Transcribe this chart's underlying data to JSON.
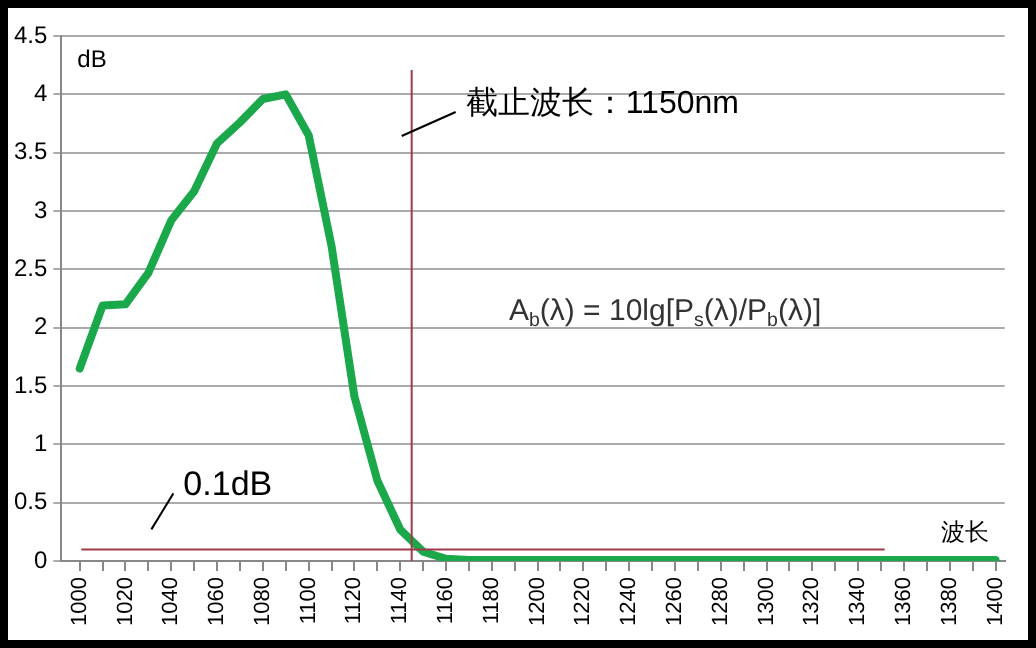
{
  "chart_data": {
    "type": "line",
    "xlabel": "波长",
    "ylabel": "dB",
    "x": [
      1000,
      1010,
      1020,
      1030,
      1040,
      1050,
      1060,
      1070,
      1080,
      1090,
      1100,
      1110,
      1120,
      1130,
      1140,
      1150,
      1160,
      1170,
      1180,
      1190,
      1200,
      1210,
      1220,
      1230,
      1240,
      1250,
      1260,
      1270,
      1280,
      1290,
      1300,
      1310,
      1320,
      1330,
      1340,
      1350,
      1360,
      1370,
      1380,
      1390,
      1400
    ],
    "series": [
      {
        "color": "#1aa84a",
        "values": [
          1.65,
          2.19,
          2.2,
          2.47,
          2.92,
          3.17,
          3.58,
          3.76,
          3.96,
          4.0,
          3.65,
          2.7,
          1.41,
          0.69,
          0.27,
          0.08,
          0.02,
          0.01,
          0.01,
          0.01,
          0.01,
          0.01,
          0.01,
          0.01,
          0.01,
          0.01,
          0.01,
          0.01,
          0.01,
          0.01,
          0.01,
          0.01,
          0.01,
          0.01,
          0.01,
          0.01,
          0.01,
          0.01,
          0.01,
          0.01,
          0.01
        ]
      }
    ],
    "xlim": [
      992,
      1404
    ],
    "xticks": [
      1000,
      {
        "value": 1010,
        "label": null
      },
      1020,
      {
        "value": 1030,
        "label": null
      },
      1040,
      {
        "value": 1050,
        "label": null
      },
      1060,
      {
        "value": 1070,
        "label": null
      },
      1080,
      {
        "value": 1090,
        "label": null
      },
      1100,
      {
        "value": 1110,
        "label": null
      },
      1120,
      {
        "value": 1130,
        "label": null
      },
      1140,
      {
        "value": 1150,
        "label": null
      },
      1160,
      {
        "value": 1170,
        "label": null
      },
      1180,
      {
        "value": 1190,
        "label": null
      },
      1200,
      {
        "value": 1210,
        "label": null
      },
      1220,
      {
        "value": 1230,
        "label": null
      },
      1240,
      {
        "value": 1250,
        "label": null
      },
      1260,
      {
        "value": 1270,
        "label": null
      },
      1280,
      {
        "value": 1290,
        "label": null
      },
      1300,
      {
        "value": 1310,
        "label": null
      },
      1320,
      {
        "value": 1330,
        "label": null
      },
      1340,
      {
        "value": 1350,
        "label": null
      },
      1360,
      {
        "value": 1370,
        "label": null
      },
      1380,
      {
        "value": 1390,
        "label": null
      },
      1400
    ],
    "ylim": [
      0,
      4.5
    ],
    "yticks": [
      0,
      0.5,
      1,
      1.5,
      2,
      2.5,
      3,
      3.5,
      4,
      4.5
    ],
    "ref_lines": [
      {
        "axis": "x",
        "value": 1145,
        "label": "截止波长：1150nm",
        "color": "#9e3a4a"
      },
      {
        "axis": "y",
        "value": 0.1,
        "label": "0.1dB",
        "color": "#9e3a4a"
      }
    ],
    "annotations": [
      "A$_{b}$(λ) = 10lg[P$_{s}$(λ)/P$_{b}$(λ)]"
    ],
    "grid": "y",
    "marker": "none",
    "line_style": "solid",
    "legend": false
  }
}
